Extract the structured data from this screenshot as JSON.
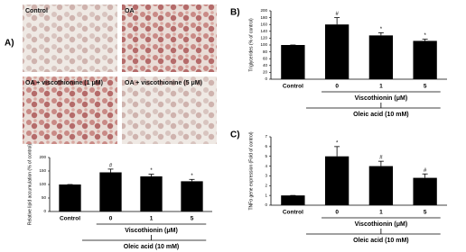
{
  "micrographs": [
    "Control",
    "OA",
    "OA + viscothionine (1 μM)",
    "OA + viscothionine (5 μM)"
  ],
  "chart_data": [
    {
      "type": "bar",
      "panel_label": "A)",
      "ylabel": "Relative lipid accumulation (% of control)",
      "categories": [
        "Control",
        "0",
        "1",
        "5"
      ],
      "values": [
        100,
        145,
        130,
        112
      ],
      "errors": [
        0,
        12,
        8,
        7
      ],
      "annotations": [
        null,
        "#",
        "*",
        "*"
      ],
      "color": "#000000",
      "ylim": [
        0,
        200
      ],
      "yticks": [
        0,
        50,
        100,
        150,
        200
      ],
      "group_label": "Viscothionin (μM)",
      "treatment_label": "Oleic acid (10 mM)"
    },
    {
      "type": "bar",
      "panel_label": "B)",
      "ylabel": "Triglycerides (% of control)",
      "categories": [
        "Control",
        "0",
        "1",
        "5"
      ],
      "values": [
        100,
        160,
        128,
        112
      ],
      "errors": [
        0,
        20,
        8,
        5
      ],
      "annotations": [
        null,
        "#",
        "*",
        "*"
      ],
      "color": "#000000",
      "ylim": [
        0,
        200
      ],
      "yticks": [
        0,
        20,
        40,
        60,
        80,
        100,
        120,
        140,
        160,
        180,
        200
      ],
      "group_label": "Viscothionin (μM)",
      "treatment_label": "Oleic acid (10 mM)"
    },
    {
      "type": "bar",
      "panel_label": "C)",
      "ylabel": "TNFα gene expression (Fold of control)",
      "categories": [
        "Control",
        "0",
        "1",
        "5"
      ],
      "values": [
        1,
        5,
        4,
        2.8
      ],
      "errors": [
        0,
        1,
        0.5,
        0.4
      ],
      "annotations": [
        null,
        "*",
        "#",
        "#"
      ],
      "color": "#000000",
      "ylim": [
        0,
        7
      ],
      "yticks": [
        0,
        1,
        2,
        3,
        4,
        5,
        6,
        7
      ],
      "group_label": "Viscothionin (μM)",
      "treatment_label": "Oleic acid (10 mM)"
    }
  ]
}
